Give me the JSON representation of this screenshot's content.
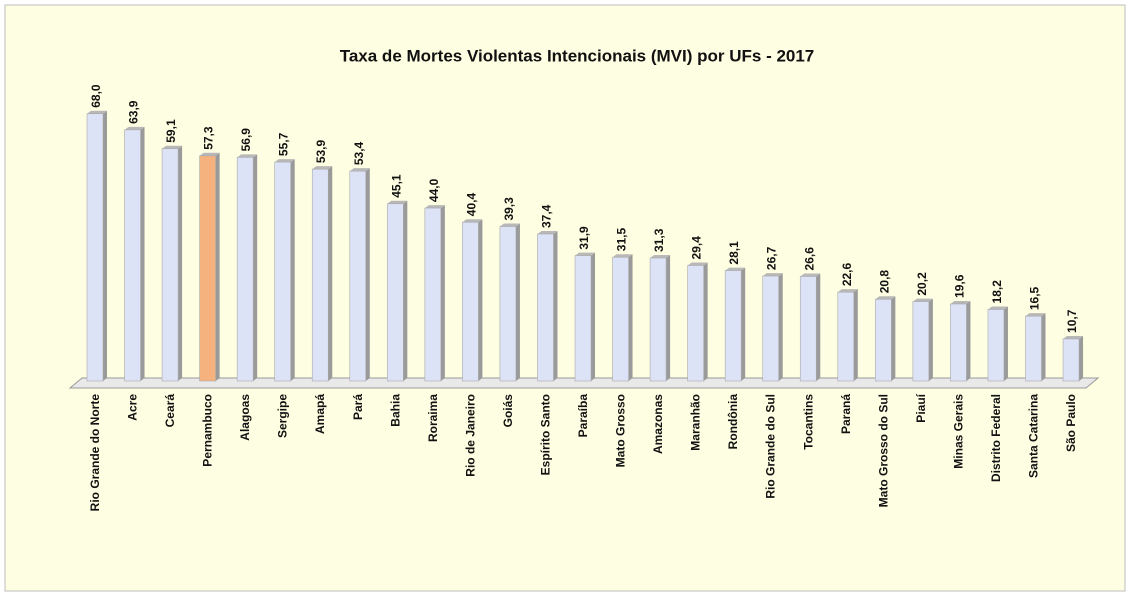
{
  "chart_data": {
    "type": "bar",
    "title": "Taxa de Mortes Violentas Intencionais (MVI) por UFs - 2017",
    "categories": [
      "Rio Grande do Norte",
      "Acre",
      "Ceará",
      "Pernambuco",
      "Alagoas",
      "Sergipe",
      "Amapá",
      "Pará",
      "Bahia",
      "Roraima",
      "Rio de Janeiro",
      "Goiás",
      "Espírito Santo",
      "Paraíba",
      "Mato Grosso",
      "Amazonas",
      "Maranhão",
      "Rondônia",
      "Rio Grande do Sul",
      "Tocantins",
      "Paraná",
      "Mato Grosso do Sul",
      "Piauí",
      "Minas Gerais",
      "Distrito Federal",
      "Santa Catarina",
      "São Paulo"
    ],
    "values": [
      68.0,
      63.9,
      59.1,
      57.3,
      56.9,
      55.7,
      53.9,
      53.4,
      45.1,
      44.0,
      40.4,
      39.3,
      37.4,
      31.9,
      31.5,
      31.3,
      29.4,
      28.1,
      26.7,
      26.6,
      22.6,
      20.8,
      20.2,
      19.6,
      18.2,
      16.5,
      10.7
    ],
    "value_labels": [
      "68,0",
      "63,9",
      "59,1",
      "57,3",
      "56,9",
      "55,7",
      "53,9",
      "53,4",
      "45,1",
      "44,0",
      "40,4",
      "39,3",
      "37,4",
      "31,9",
      "31,5",
      "31,3",
      "29,4",
      "28,1",
      "26,7",
      "26,6",
      "22,6",
      "20,8",
      "20,2",
      "19,6",
      "18,2",
      "16,5",
      "10,7"
    ],
    "colors": [
      "#dde3f6",
      "#dde3f6",
      "#dde3f6",
      "#f5b27e",
      "#dde3f6",
      "#dde3f6",
      "#dde3f6",
      "#dde3f6",
      "#dde3f6",
      "#dde3f6",
      "#dde3f6",
      "#dde3f6",
      "#dde3f6",
      "#dde3f6",
      "#dde3f6",
      "#dde3f6",
      "#dde3f6",
      "#dde3f6",
      "#dde3f6",
      "#dde3f6",
      "#dde3f6",
      "#dde3f6",
      "#dde3f6",
      "#dde3f6",
      "#dde3f6",
      "#dde3f6",
      "#dde3f6"
    ]
  }
}
